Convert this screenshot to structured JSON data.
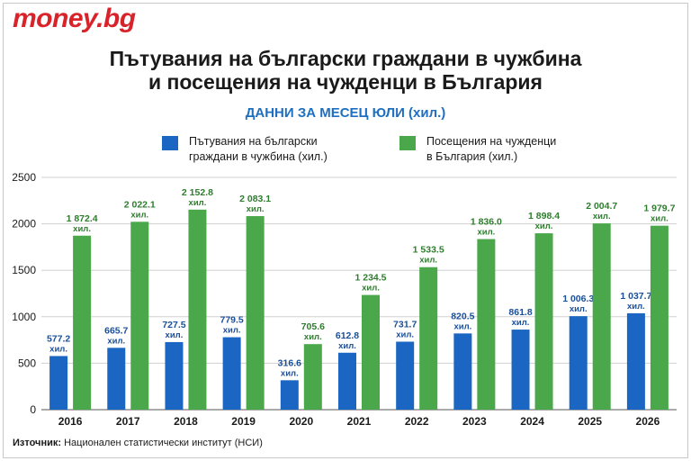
{
  "logo": "money.bg",
  "title_line1": "Пътувания на български граждани в чужбина",
  "title_line2": "и посещения на чужденци в България",
  "subtitle": "ДАННИ ЗА МЕСЕЦ ЮЛИ (хил.)",
  "legend": [
    {
      "label": "Пътувания на български\nграждани в чужбина (хил.)",
      "color": "#1a66c2"
    },
    {
      "label": "Посещения на чужденци\nв България (хил.)",
      "color": "#4aa84a"
    }
  ],
  "source_label": "Източник:",
  "source_text": "Национален статистически институт (НСИ)",
  "colors": {
    "blue": "#1a66c2",
    "green": "#4aa84a",
    "green_text": "#2e7d2e",
    "blue_text": "#1a4f99",
    "grid": "#d0d0d0"
  },
  "chart_data": {
    "type": "bar",
    "categories": [
      "2016",
      "2017",
      "2018",
      "2019",
      "2020",
      "2021",
      "2022",
      "2023",
      "2024",
      "2025",
      "2026"
    ],
    "ylim": [
      0,
      2500
    ],
    "yticks": [
      "0",
      "500",
      "1000",
      "1500",
      "2000",
      "2500"
    ],
    "unit_label": "хил.",
    "grid": true,
    "series": [
      {
        "name": "Пътувания на български граждани в чужбина (хил.)",
        "values": [
          577.2,
          665.7,
          727.5,
          779.5,
          316.6,
          612.8,
          731.7,
          820.5,
          861.8,
          1006.3,
          1037.7
        ],
        "labels": [
          "577.2",
          "665.7",
          "727.5",
          "779.5",
          "316.6",
          "612.8",
          "731.7",
          "820.5",
          "861.8",
          "1 006.3",
          "1 037.7"
        ]
      },
      {
        "name": "Посещения на чужденци в България (хил.)",
        "values": [
          1872.4,
          2022.1,
          2152.8,
          2083.1,
          705.6,
          1234.5,
          1533.5,
          1836.0,
          1898.4,
          2004.7,
          1979.7
        ],
        "labels": [
          "1 872.4",
          "2 022.1",
          "2 152.8",
          "2 083.1",
          "705.6",
          "1 234.5",
          "1 533.5",
          "1 836.0",
          "1 898.4",
          "2 004.7",
          "1 979.7"
        ]
      }
    ]
  }
}
